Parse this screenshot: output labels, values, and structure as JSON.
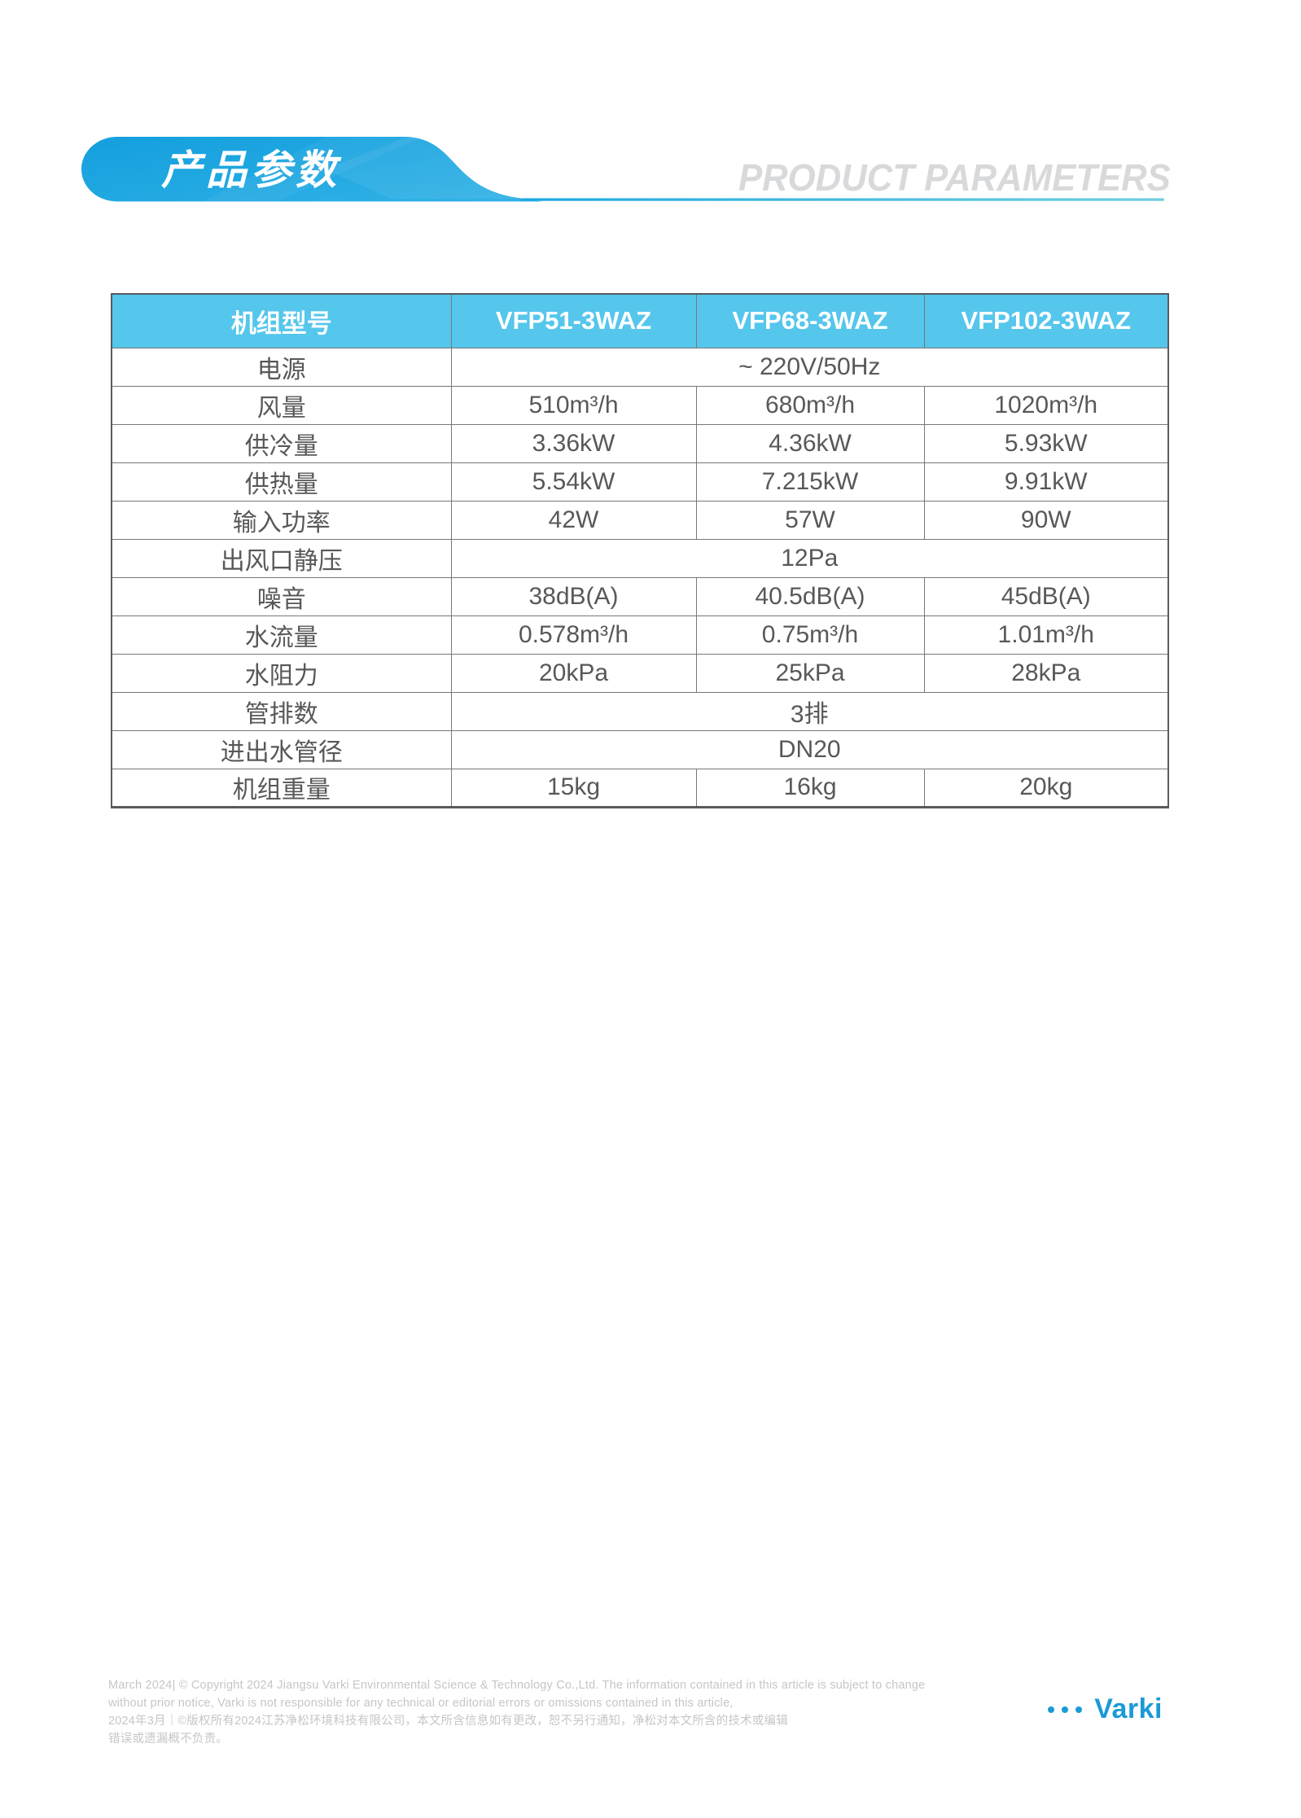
{
  "header": {
    "title_zh": "产品参数",
    "title_en": "PRODUCT PARAMETERS"
  },
  "table": {
    "columns": [
      "机组型号",
      "VFP51-3WAZ",
      "VFP68-3WAZ",
      "VFP102-3WAZ"
    ],
    "rows": [
      {
        "label": "电源",
        "cells": [
          "~ 220V/50Hz"
        ]
      },
      {
        "label": "风量",
        "cells": [
          "510m³/h",
          "680m³/h",
          "1020m³/h"
        ]
      },
      {
        "label": "供冷量",
        "cells": [
          "3.36kW",
          "4.36kW",
          "5.93kW"
        ]
      },
      {
        "label": "供热量",
        "cells": [
          "5.54kW",
          "7.215kW",
          "9.91kW"
        ]
      },
      {
        "label": "输入功率",
        "cells": [
          "42W",
          "57W",
          "90W"
        ]
      },
      {
        "label": "出风口静压",
        "cells": [
          "12Pa"
        ]
      },
      {
        "label": "噪音",
        "cells": [
          "38dB(A)",
          "40.5dB(A)",
          "45dB(A)"
        ]
      },
      {
        "label": "水流量",
        "cells": [
          "0.578m³/h",
          "0.75m³/h",
          "1.01m³/h"
        ]
      },
      {
        "label": "水阻力",
        "cells": [
          "20kPa",
          "25kPa",
          "28kPa"
        ]
      },
      {
        "label": "管排数",
        "cells": [
          "3排"
        ]
      },
      {
        "label": "进出水管径",
        "cells": [
          "DN20"
        ]
      },
      {
        "label": "机组重量",
        "cells": [
          "15kg",
          "16kg",
          "20kg"
        ]
      }
    ]
  },
  "footer": {
    "legal_en_line1": "March 2024| © Copyright 2024 Jiangsu Varki Environmental Science & Technology Co.,Ltd. The information contained in this article is subject to change",
    "legal_en_line2": "without prior notice, Varki is not responsible for any technical or editorial errors or omissions contained in this article,",
    "legal_zh_line1": "2024年3月｜©版权所有2024江苏净松环境科技有限公司，本文所含信息如有更改，恕不另行通知，净松对本文所含的技术或编辑",
    "legal_zh_line2": "错误或遗漏概不负责。",
    "brand": "Varki"
  },
  "colors": {
    "ribbon_blue_start": "#149fdd",
    "ribbon_blue_end": "#34b3e7",
    "underline_teal": "#6fcede",
    "table_header_blue": "#55c6ec",
    "text_gray": "#57585a",
    "legal_gray": "#c5c6c8",
    "brand_blue": "#1b9ad7"
  }
}
